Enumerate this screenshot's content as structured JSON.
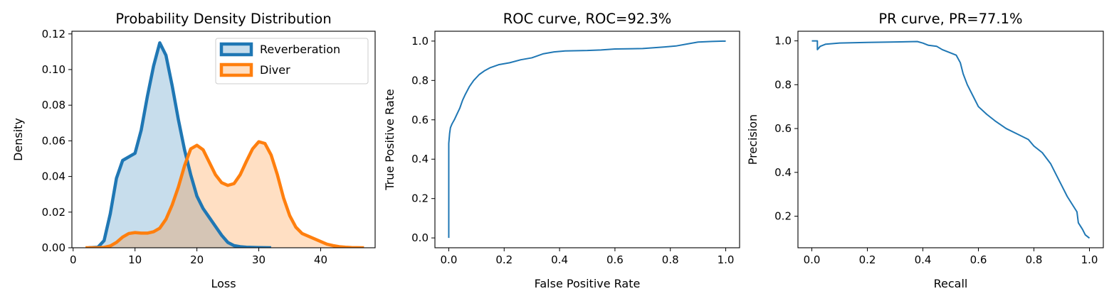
{
  "chart_data": [
    {
      "type": "area",
      "title": "Probability Density Distribution",
      "xlabel": "Loss",
      "ylabel": "Density",
      "xlim": [
        -0.2,
        48.8
      ],
      "ylim": [
        0,
        0.1215
      ],
      "xticks": [
        0,
        10,
        20,
        30,
        40
      ],
      "xtick_labels": [
        "0",
        "10",
        "20",
        "30",
        "40"
      ],
      "yticks": [
        0,
        0.02,
        0.04,
        0.06,
        0.08,
        0.1,
        0.12
      ],
      "ytick_labels": [
        "0.00",
        "0.02",
        "0.04",
        "0.06",
        "0.08",
        "0.10",
        "0.12"
      ],
      "grid": false,
      "legend_position": "upper right",
      "series": [
        {
          "name": "Reverberation",
          "color": "#1f77b4",
          "points": [
            [
              2.5,
              0
            ],
            [
              4,
              0.0003
            ],
            [
              5,
              0.004
            ],
            [
              6,
              0.019
            ],
            [
              7,
              0.039
            ],
            [
              8,
              0.049
            ],
            [
              9,
              0.051
            ],
            [
              10,
              0.053
            ],
            [
              11,
              0.066
            ],
            [
              12,
              0.085
            ],
            [
              13,
              0.102
            ],
            [
              14,
              0.115
            ],
            [
              15,
              0.108
            ],
            [
              16,
              0.091
            ],
            [
              17,
              0.072
            ],
            [
              18,
              0.055
            ],
            [
              19,
              0.041
            ],
            [
              20,
              0.029
            ],
            [
              21,
              0.022
            ],
            [
              22,
              0.017
            ],
            [
              23,
              0.012
            ],
            [
              24,
              0.007
            ],
            [
              25,
              0.003
            ],
            [
              26,
              0.0012
            ],
            [
              27,
              0.0006
            ],
            [
              28,
              0.0003
            ],
            [
              30,
              0.0001
            ],
            [
              32,
              0
            ]
          ]
        },
        {
          "name": "Diver",
          "color": "#ff7f0e",
          "points": [
            [
              2,
              0
            ],
            [
              4,
              0
            ],
            [
              5,
              0.0002
            ],
            [
              6,
              0.001
            ],
            [
              7,
              0.003
            ],
            [
              8,
              0.006
            ],
            [
              9,
              0.008
            ],
            [
              10,
              0.0085
            ],
            [
              11,
              0.0082
            ],
            [
              12,
              0.0082
            ],
            [
              13,
              0.009
            ],
            [
              14,
              0.011
            ],
            [
              15,
              0.016
            ],
            [
              16,
              0.024
            ],
            [
              17,
              0.034
            ],
            [
              18,
              0.046
            ],
            [
              19,
              0.0555
            ],
            [
              20,
              0.0575
            ],
            [
              21,
              0.055
            ],
            [
              22,
              0.048
            ],
            [
              23,
              0.041
            ],
            [
              24,
              0.0365
            ],
            [
              25,
              0.035
            ],
            [
              26,
              0.036
            ],
            [
              27,
              0.041
            ],
            [
              28,
              0.0485
            ],
            [
              29,
              0.0555
            ],
            [
              30,
              0.0595
            ],
            [
              31,
              0.0585
            ],
            [
              32,
              0.052
            ],
            [
              33,
              0.041
            ],
            [
              34,
              0.028
            ],
            [
              35,
              0.018
            ],
            [
              36,
              0.0115
            ],
            [
              37,
              0.008
            ],
            [
              38,
              0.0065
            ],
            [
              39,
              0.005
            ],
            [
              40,
              0.0035
            ],
            [
              41,
              0.002
            ],
            [
              42,
              0.0012
            ],
            [
              43,
              0.0006
            ],
            [
              44,
              0.0003
            ],
            [
              45,
              0.0001
            ],
            [
              47,
              0
            ]
          ]
        }
      ]
    },
    {
      "type": "line",
      "title": "ROC curve, ROC=92.3%",
      "xlabel": "False Positive Rate",
      "ylabel": "True Positive Rate",
      "xlim": [
        -0.05,
        1.05
      ],
      "ylim": [
        -0.05,
        1.05
      ],
      "xticks": [
        0,
        0.2,
        0.4,
        0.6,
        0.8,
        1.0
      ],
      "xtick_labels": [
        "0.0",
        "0.2",
        "0.4",
        "0.6",
        "0.8",
        "1.0"
      ],
      "yticks": [
        0,
        0.2,
        0.4,
        0.6,
        0.8,
        1.0
      ],
      "ytick_labels": [
        "0.0",
        "0.2",
        "0.4",
        "0.6",
        "0.8",
        "1.0"
      ],
      "grid": false,
      "series": [
        {
          "color": "#1f77b4",
          "points": [
            [
              0,
              0
            ],
            [
              0,
              0.48
            ],
            [
              0.003,
              0.53
            ],
            [
              0.006,
              0.56
            ],
            [
              0.012,
              0.58
            ],
            [
              0.02,
              0.6
            ],
            [
              0.03,
              0.63
            ],
            [
              0.04,
              0.66
            ],
            [
              0.05,
              0.7
            ],
            [
              0.06,
              0.73
            ],
            [
              0.075,
              0.77
            ],
            [
              0.09,
              0.8
            ],
            [
              0.11,
              0.83
            ],
            [
              0.13,
              0.85
            ],
            [
              0.15,
              0.865
            ],
            [
              0.18,
              0.88
            ],
            [
              0.22,
              0.89
            ],
            [
              0.26,
              0.905
            ],
            [
              0.3,
              0.915
            ],
            [
              0.34,
              0.935
            ],
            [
              0.38,
              0.945
            ],
            [
              0.42,
              0.95
            ],
            [
              0.5,
              0.952
            ],
            [
              0.55,
              0.955
            ],
            [
              0.6,
              0.96
            ],
            [
              0.7,
              0.962
            ],
            [
              0.78,
              0.97
            ],
            [
              0.82,
              0.975
            ],
            [
              0.86,
              0.985
            ],
            [
              0.9,
              0.995
            ],
            [
              0.95,
              0.998
            ],
            [
              1.0,
              1.0
            ]
          ]
        }
      ]
    },
    {
      "type": "line",
      "title": "PR curve, PR=77.1%",
      "xlabel": "Recall",
      "ylabel": "Precision",
      "xlim": [
        -0.05,
        1.05
      ],
      "ylim": [
        0.056,
        1.044
      ],
      "xticks": [
        0,
        0.2,
        0.4,
        0.6,
        0.8,
        1.0
      ],
      "xtick_labels": [
        "0.0",
        "0.2",
        "0.4",
        "0.6",
        "0.8",
        "1.0"
      ],
      "yticks": [
        0.2,
        0.4,
        0.6,
        0.8,
        1.0
      ],
      "ytick_labels": [
        "0.2",
        "0.4",
        "0.6",
        "0.8",
        "1.0"
      ],
      "grid": false,
      "series": [
        {
          "color": "#1f77b4",
          "points": [
            [
              0,
              1.0
            ],
            [
              0.02,
              1.0
            ],
            [
              0.02,
              0.96
            ],
            [
              0.03,
              0.975
            ],
            [
              0.05,
              0.985
            ],
            [
              0.1,
              0.99
            ],
            [
              0.2,
              0.993
            ],
            [
              0.3,
              0.995
            ],
            [
              0.38,
              0.997
            ],
            [
              0.4,
              0.99
            ],
            [
              0.42,
              0.98
            ],
            [
              0.45,
              0.975
            ],
            [
              0.47,
              0.96
            ],
            [
              0.5,
              0.945
            ],
            [
              0.52,
              0.935
            ],
            [
              0.535,
              0.9
            ],
            [
              0.545,
              0.85
            ],
            [
              0.56,
              0.8
            ],
            [
              0.58,
              0.75
            ],
            [
              0.6,
              0.7
            ],
            [
              0.63,
              0.665
            ],
            [
              0.66,
              0.635
            ],
            [
              0.7,
              0.6
            ],
            [
              0.74,
              0.575
            ],
            [
              0.78,
              0.55
            ],
            [
              0.8,
              0.52
            ],
            [
              0.83,
              0.49
            ],
            [
              0.86,
              0.44
            ],
            [
              0.88,
              0.39
            ],
            [
              0.9,
              0.34
            ],
            [
              0.92,
              0.29
            ],
            [
              0.94,
              0.25
            ],
            [
              0.955,
              0.22
            ],
            [
              0.96,
              0.17
            ],
            [
              0.975,
              0.14
            ],
            [
              0.985,
              0.115
            ],
            [
              1.0,
              0.1
            ]
          ]
        }
      ]
    }
  ]
}
